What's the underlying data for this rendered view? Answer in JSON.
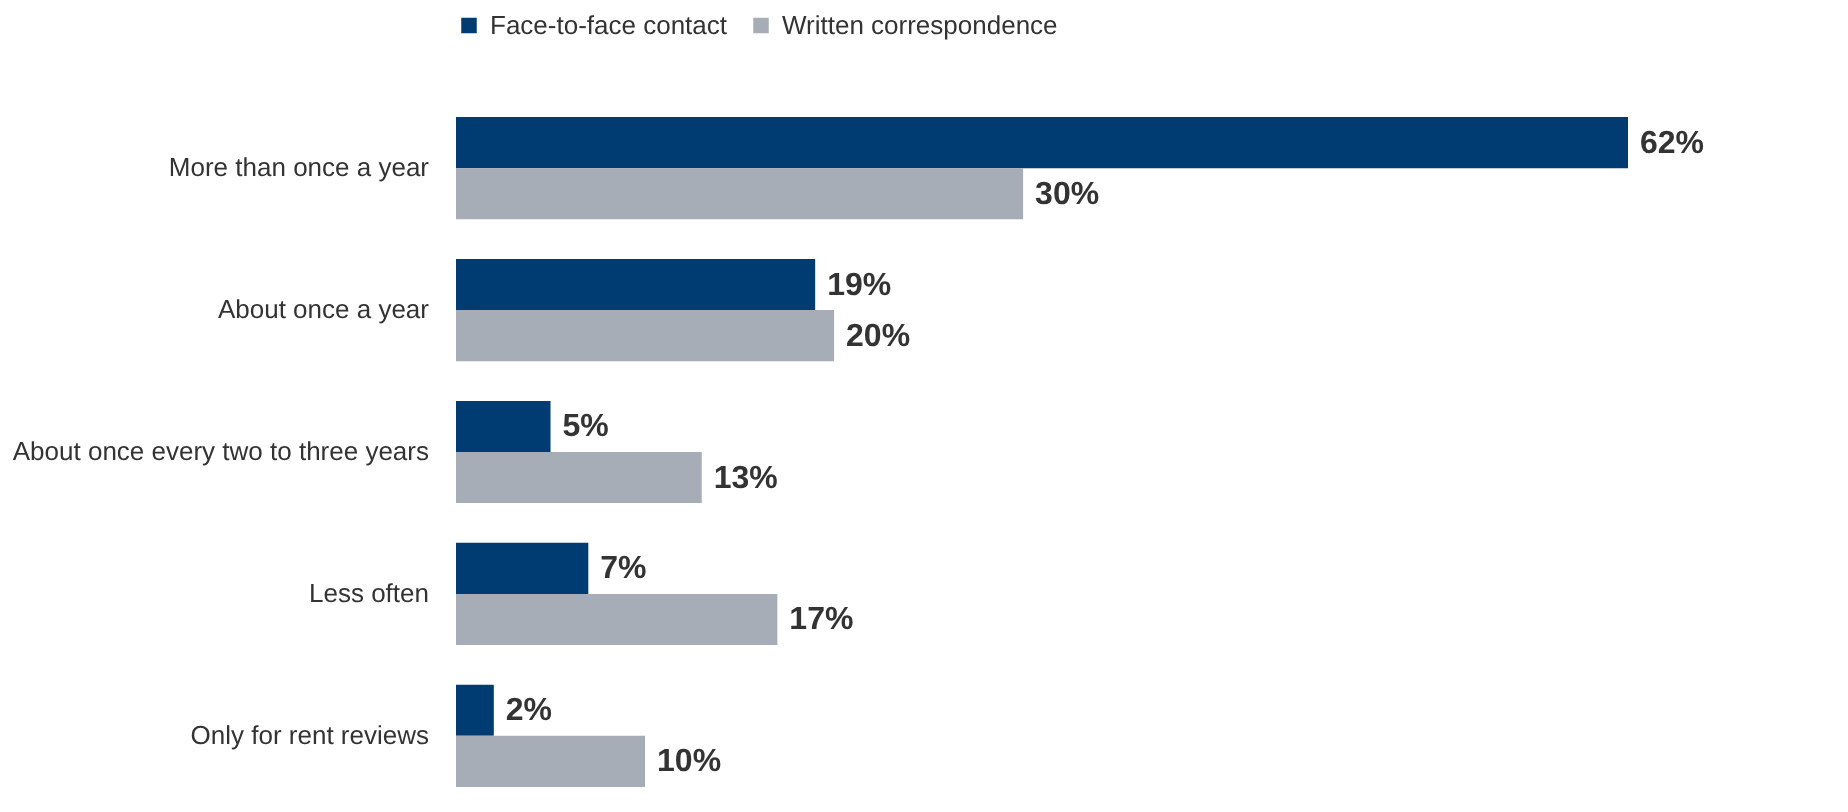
{
  "chart_data": {
    "type": "bar",
    "orientation": "horizontal",
    "legend": "top",
    "categories": [
      "More than once a year",
      "About once a year",
      "About once every two to three years",
      "Less often",
      "Only for rent reviews"
    ],
    "series": [
      {
        "name": "Face-to-face contact",
        "color": "#003b71",
        "values": [
          62,
          19,
          5,
          7,
          2
        ],
        "value_labels": [
          "62%",
          "19%",
          "5%",
          "7%",
          "2%"
        ]
      },
      {
        "name": "Written correspondence",
        "color": "#a6adb6",
        "values": [
          30,
          20,
          13,
          17,
          10
        ],
        "value_labels": [
          "30%",
          "20%",
          "13%",
          "17%",
          "10%"
        ]
      }
    ]
  }
}
